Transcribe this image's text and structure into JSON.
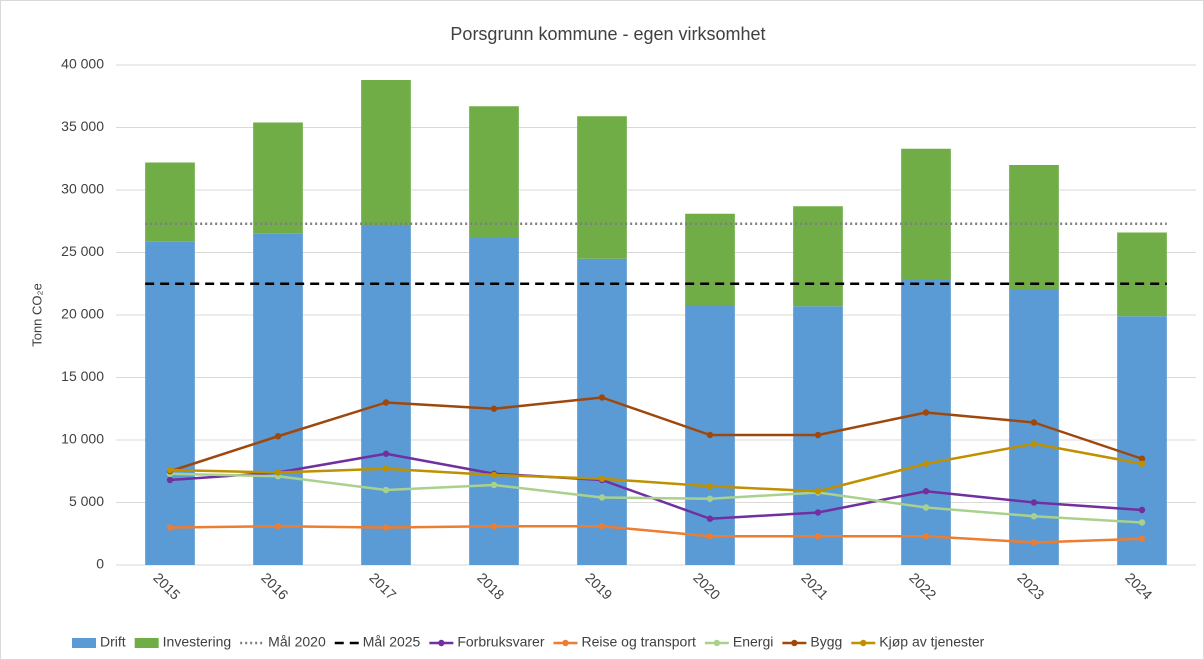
{
  "chart_data": {
    "type": "combo",
    "title": "Porsgrunn kommune - egen virksomhet",
    "y_label": "Tonn CO₂e",
    "categories": [
      "2015",
      "2016",
      "2017",
      "2018",
      "2019",
      "2020",
      "2021",
      "2022",
      "2023",
      "2024"
    ],
    "ylim": [
      0,
      40000
    ],
    "yticks": [
      0,
      {
        "value": 5000,
        "label": "5 000"
      },
      {
        "value": 10000,
        "label": "10 000"
      },
      {
        "value": 15000,
        "label": "15 000"
      },
      {
        "value": 20000,
        "label": "20 000"
      },
      {
        "value": 25000,
        "label": "25 000"
      },
      {
        "value": 30000,
        "label": "30 000"
      },
      {
        "value": 35000,
        "label": "35 000"
      },
      {
        "value": 40000,
        "label": "40 000"
      }
    ],
    "grid": true,
    "legend": "bottom",
    "series": [
      {
        "name": "Drift",
        "type": "bar",
        "stack": true,
        "color": "#5b9bd5",
        "values": [
          25900,
          26500,
          27200,
          26200,
          24500,
          20800,
          20700,
          22800,
          22000,
          19900
        ]
      },
      {
        "name": "Investering",
        "type": "bar",
        "stack": true,
        "color": "#70ad47",
        "values": [
          6300,
          8900,
          11600,
          10500,
          11400,
          7300,
          8000,
          10500,
          10000,
          6700
        ]
      },
      {
        "name": "Mål 2020",
        "type": "line",
        "dash": "dotted",
        "color": "#7f7f7f",
        "values": [
          27300,
          27300,
          27300,
          27300,
          27300,
          27300,
          27300,
          27300,
          27300,
          27300
        ]
      },
      {
        "name": "Mål 2025",
        "type": "line",
        "dash": "dashed",
        "color": "#000000",
        "values": [
          22500,
          22500,
          22500,
          22500,
          22500,
          22500,
          22500,
          22500,
          22500,
          22500
        ]
      },
      {
        "name": "Forbruksvarer",
        "type": "line",
        "marker": true,
        "color": "#7030a0",
        "values": [
          6800,
          7400,
          8900,
          7300,
          6800,
          3700,
          4200,
          5900,
          5000,
          4400
        ]
      },
      {
        "name": "Reise og transport",
        "type": "line",
        "marker": true,
        "color": "#ed7d31",
        "values": [
          3000,
          3100,
          3000,
          3100,
          3100,
          2300,
          2300,
          2300,
          1800,
          2100
        ]
      },
      {
        "name": "Energi",
        "type": "line",
        "marker": true,
        "color": "#a9d18e",
        "values": [
          7300,
          7100,
          6000,
          6400,
          5400,
          5300,
          5800,
          4600,
          3900,
          3400
        ]
      },
      {
        "name": "Bygg",
        "type": "line",
        "marker": true,
        "color": "#9e480e",
        "values": [
          7500,
          10300,
          13000,
          12500,
          13400,
          10400,
          10400,
          12200,
          11400,
          8500
        ]
      },
      {
        "name": "Kjøp av tjenester",
        "type": "line",
        "marker": true,
        "color": "#bf9000",
        "values": [
          7600,
          7400,
          7700,
          7200,
          6900,
          6300,
          5900,
          8100,
          9700,
          8100
        ]
      }
    ]
  }
}
